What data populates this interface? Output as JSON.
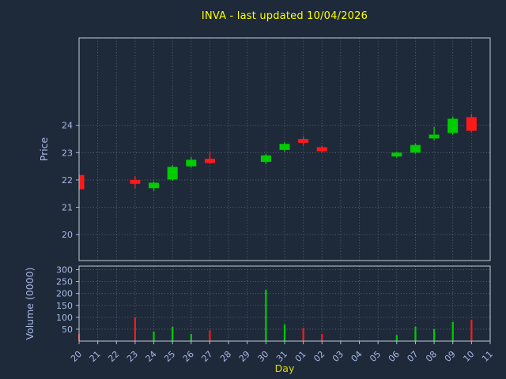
{
  "chart_data": [
    {
      "type": "candlestick",
      "title": "INVA - last updated 10/04/2026",
      "xlabel": "Day",
      "ylabel": "Price",
      "x_ticklabels": [
        "20",
        "21",
        "22",
        "23",
        "24",
        "25",
        "26",
        "27",
        "28",
        "29",
        "30",
        "31",
        "01",
        "02",
        "03",
        "04",
        "05",
        "06",
        "07",
        "08",
        "09",
        "10",
        "11"
      ],
      "yticks": [
        20,
        21,
        22,
        23,
        24
      ],
      "ylim": [
        19.05,
        27.2
      ],
      "grid": "dotted",
      "legend": "none",
      "candles": [
        {
          "day": "20",
          "open": 22.18,
          "high": 22.22,
          "low": 21.62,
          "close": 21.66
        },
        {
          "day": "23",
          "open": 22.0,
          "high": 22.14,
          "low": 21.7,
          "close": 21.86
        },
        {
          "day": "24",
          "open": 21.7,
          "high": 21.94,
          "low": 21.6,
          "close": 21.9
        },
        {
          "day": "25",
          "open": 22.02,
          "high": 22.55,
          "low": 21.97,
          "close": 22.48
        },
        {
          "day": "26",
          "open": 22.5,
          "high": 22.85,
          "low": 22.45,
          "close": 22.74
        },
        {
          "day": "27",
          "open": 22.78,
          "high": 23.05,
          "low": 22.58,
          "close": 22.62
        },
        {
          "day": "30",
          "open": 22.66,
          "high": 22.96,
          "low": 22.58,
          "close": 22.9
        },
        {
          "day": "31",
          "open": 23.1,
          "high": 23.38,
          "low": 23.04,
          "close": 23.32
        },
        {
          "day": "01",
          "open": 23.5,
          "high": 23.6,
          "low": 23.26,
          "close": 23.36
        },
        {
          "day": "02",
          "open": 23.2,
          "high": 23.26,
          "low": 23.0,
          "close": 23.05
        },
        {
          "day": "06",
          "open": 22.86,
          "high": 23.04,
          "low": 22.82,
          "close": 23.0
        },
        {
          "day": "07",
          "open": 23.0,
          "high": 23.34,
          "low": 22.96,
          "close": 23.28
        },
        {
          "day": "08",
          "open": 23.52,
          "high": 23.94,
          "low": 23.46,
          "close": 23.66
        },
        {
          "day": "09",
          "open": 23.72,
          "high": 24.32,
          "low": 23.66,
          "close": 24.24
        },
        {
          "day": "10",
          "open": 24.3,
          "high": 24.42,
          "low": 23.74,
          "close": 23.8
        }
      ]
    },
    {
      "type": "bar",
      "ylabel": "Volume (0000)",
      "yticks": [
        50,
        100,
        150,
        200,
        250,
        300
      ],
      "ylim": [
        0,
        315
      ],
      "grid": "dotted",
      "bars": [
        {
          "day": "20",
          "value": 30
        },
        {
          "day": "23",
          "value": 100
        },
        {
          "day": "24",
          "value": 40
        },
        {
          "day": "25",
          "value": 60
        },
        {
          "day": "26",
          "value": 30
        },
        {
          "day": "27",
          "value": 45
        },
        {
          "day": "30",
          "value": 215
        },
        {
          "day": "31",
          "value": 70
        },
        {
          "day": "01",
          "value": 55
        },
        {
          "day": "02",
          "value": 30
        },
        {
          "day": "06",
          "value": 25
        },
        {
          "day": "07",
          "value": 60
        },
        {
          "day": "08",
          "value": 50
        },
        {
          "day": "09",
          "value": 80
        },
        {
          "day": "10",
          "value": 90
        }
      ]
    }
  ],
  "style": {
    "background": "#1e2a3a",
    "title_color": "#ffff00",
    "tick_label_color": "#a9b8e4",
    "axis_label_color": "#a9b8e4",
    "xlabel_color": "#dede00",
    "spine_color": "#c3ccd6",
    "grid_color": "#ffffff",
    "up_color": "#00cc00",
    "down_color": "#ff1a1a"
  }
}
